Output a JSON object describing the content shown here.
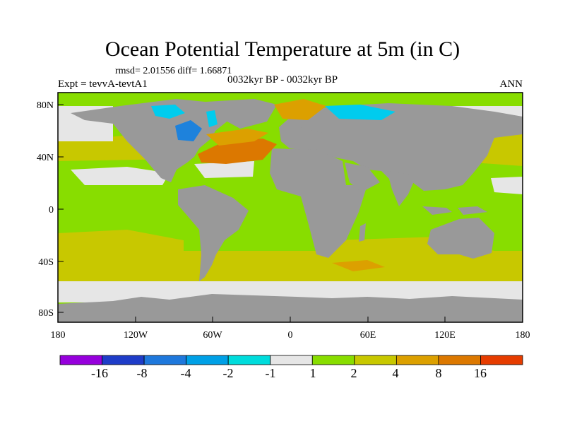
{
  "title": "Ocean Potential Temperature at 5m (in C)",
  "stats": "rmsd= 2.01556 diff= 1.66871",
  "experiment": "Expt = tevvA-tevtA1",
  "period": "0032kyr BP - 0032kyr BP",
  "season": "ANN",
  "map": {
    "lat_ticks": [
      "80N",
      "40N",
      "0",
      "40S",
      "80S"
    ],
    "lon_ticks": [
      "180",
      "120W",
      "60W",
      "0",
      "60E",
      "120E",
      "180"
    ],
    "colors": {
      "land": "#999999",
      "near_zero": "#e6e6e6",
      "warm_1_2": "#88dd00",
      "warm_2_4": "#c8c800",
      "warm_4_8": "#dca000",
      "warm_8_16": "#dc7800",
      "cold_2_4": "#00ccee",
      "cold_4_8": "#1e82dc"
    }
  },
  "colorbar": {
    "labels": [
      "-16",
      "-8",
      "-4",
      "-2",
      "-1",
      "1",
      "2",
      "4",
      "8",
      "16"
    ],
    "colors": [
      "#9600dc",
      "#1e3cc8",
      "#1e78dc",
      "#00a0e6",
      "#00dcdc",
      "#e6e6e6",
      "#88dd00",
      "#c8c800",
      "#dca000",
      "#dc7800",
      "#e63c00"
    ]
  }
}
